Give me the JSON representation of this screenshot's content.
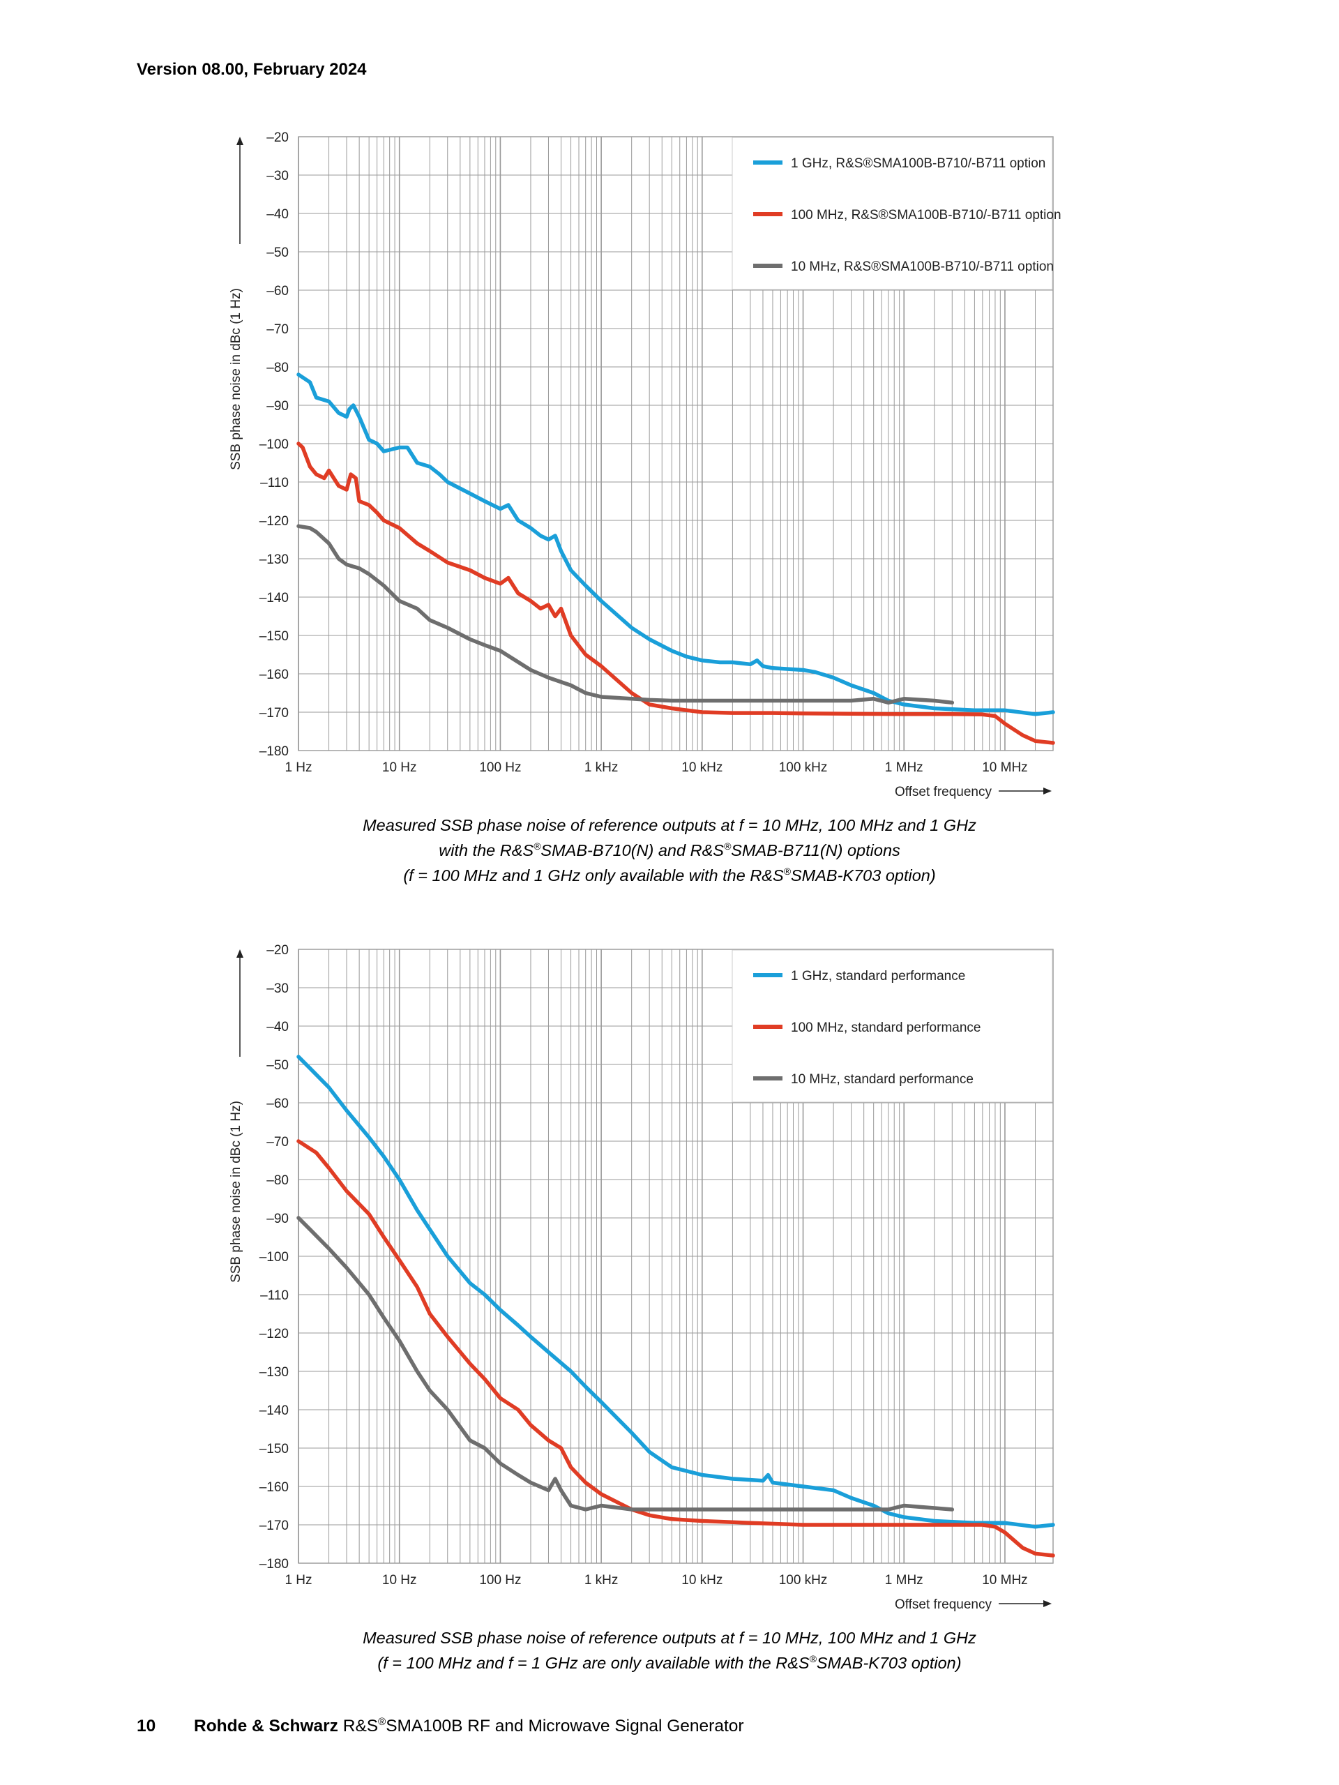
{
  "header": {
    "version": "Version 08.00, February 2024"
  },
  "footer": {
    "page_number": "10",
    "brand": "Rohde & Schwarz",
    "product_prefix": " R&S",
    "product_sup": "®",
    "product_rest": "SMA100B RF and Microwave Signal Generator"
  },
  "captions": [
    {
      "lines": [
        [
          "Measured SSB phase noise of reference outputs at f = 10 MHz, 100 MHz and 1 GHz"
        ],
        [
          "with the R&S",
          "®",
          "SMAB-B710(N) and R&S",
          "®",
          "SMAB-B711(N) options"
        ],
        [
          "(f = 100 MHz and 1 GHz only available with the R&S",
          "®",
          "SMAB-K703 option)"
        ]
      ]
    },
    {
      "lines": [
        [
          "Measured SSB phase noise of reference outputs at f = 10 MHz, 100 MHz and 1 GHz"
        ],
        [
          "(f = 100 MHz and f = 1 GHz are only available with the R&S",
          "®",
          "SMAB-K703 option)"
        ]
      ]
    }
  ],
  "chart_data": [
    {
      "type": "line",
      "xscale": "log",
      "xlim": [
        1,
        30000000
      ],
      "ylim": [
        -180,
        -20
      ],
      "ylabel": "SSB phase noise in dBc (1 Hz)",
      "xlabel": "Offset frequency",
      "xticks": [
        1,
        10,
        100,
        1000,
        10000,
        100000,
        1000000,
        10000000
      ],
      "xticklabels": [
        "1 Hz",
        "10 Hz",
        "100 Hz",
        "1 kHz",
        "10 kHz",
        "100 kHz",
        "1 MHz",
        "10 MHz"
      ],
      "yticks": [
        -20,
        -30,
        -40,
        -50,
        -60,
        -70,
        -80,
        -90,
        -100,
        -110,
        -120,
        -130,
        -140,
        -150,
        -160,
        -170,
        -180
      ],
      "yticklabels": [
        "–20",
        "–30",
        "–40",
        "–50",
        "–60",
        "–70",
        "–80",
        "–90",
        "–100",
        "–110",
        "–120",
        "–130",
        "–140",
        "–150",
        "–160",
        "–170",
        "–180"
      ],
      "grid": true,
      "legend_position": "top-right",
      "series": [
        {
          "name": "1 GHz, R&S®SMA100B-B710/-B711 option",
          "color": "#1a9fd9",
          "x": [
            1,
            1.3,
            1.5,
            2,
            2.5,
            3,
            3.2,
            3.5,
            4,
            5,
            6,
            7,
            10,
            12,
            15,
            20,
            25,
            30,
            50,
            70,
            100,
            120,
            150,
            200,
            250,
            300,
            350,
            400,
            500,
            700,
            1000,
            2000,
            3000,
            5000,
            7000,
            10000,
            15000,
            20000,
            30000,
            35000,
            40000,
            50000,
            100000,
            130000,
            200000,
            300000,
            500000,
            700000,
            1000000,
            2000000,
            5000000,
            10000000,
            20000000,
            30000000
          ],
          "y": [
            -82,
            -84,
            -88,
            -89,
            -92,
            -93,
            -91,
            -90,
            -93,
            -99,
            -100,
            -102,
            -101,
            -101,
            -105,
            -106,
            -108,
            -110,
            -113,
            -115,
            -117,
            -116,
            -120,
            -122,
            -124,
            -125,
            -124,
            -128,
            -133,
            -137,
            -141,
            -148,
            -151,
            -154,
            -155.5,
            -156.5,
            -157,
            -157,
            -157.5,
            -156.5,
            -158,
            -158.5,
            -159,
            -159.5,
            -161,
            -163,
            -165,
            -167,
            -168,
            -169,
            -169.5,
            -169.5,
            -170.5,
            -170
          ]
        },
        {
          "name": "100 MHz, R&S®SMA100B-B710/-B711 option",
          "color": "#e03c24",
          "x": [
            1,
            1.1,
            1.3,
            1.5,
            1.8,
            2,
            2.5,
            3,
            3.3,
            3.7,
            4,
            5,
            6,
            7,
            10,
            15,
            20,
            30,
            50,
            70,
            100,
            120,
            150,
            200,
            250,
            300,
            350,
            400,
            500,
            700,
            1000,
            2000,
            3000,
            5000,
            10000,
            20000,
            50000,
            100000,
            300000,
            1000000,
            3000000,
            6000000,
            8000000,
            10000000,
            15000000,
            20000000,
            30000000
          ],
          "y": [
            -100,
            -101,
            -106,
            -108,
            -109,
            -107,
            -111,
            -112,
            -108,
            -109,
            -115,
            -116,
            -118,
            -120,
            -122,
            -126,
            -128,
            -131,
            -133,
            -135,
            -136.5,
            -135,
            -139,
            -141,
            -143,
            -142,
            -145,
            -143,
            -150,
            -155,
            -158,
            -165,
            -168,
            -169,
            -170,
            -170.2,
            -170.2,
            -170.3,
            -170.4,
            -170.5,
            -170.5,
            -170.6,
            -171,
            -173,
            -176,
            -177.5,
            -178
          ]
        },
        {
          "name": "10 MHz, R&S®SMA100B-B710/-B711 option",
          "color": "#6e6e6e",
          "x": [
            1,
            1.3,
            1.5,
            2,
            2.5,
            3,
            4,
            5,
            7,
            10,
            15,
            20,
            30,
            50,
            70,
            100,
            200,
            300,
            500,
            700,
            1000,
            2000,
            3000,
            5000,
            10000,
            30000,
            100000,
            300000,
            500000,
            700000,
            1000000,
            2000000,
            3000000
          ],
          "y": [
            -121.5,
            -122,
            -123,
            -126,
            -130,
            -131.5,
            -132.5,
            -134,
            -137,
            -141,
            -143,
            -146,
            -148,
            -151,
            -152.5,
            -154,
            -159,
            -161,
            -163,
            -165,
            -166,
            -166.5,
            -166.8,
            -167,
            -167,
            -167,
            -167,
            -167,
            -166.5,
            -167.5,
            -166.5,
            -167,
            -167.5
          ]
        }
      ]
    },
    {
      "type": "line",
      "xscale": "log",
      "xlim": [
        1,
        30000000
      ],
      "ylim": [
        -180,
        -20
      ],
      "ylabel": "SSB phase noise in dBc (1 Hz)",
      "xlabel": "Offset frequency",
      "xticks": [
        1,
        10,
        100,
        1000,
        10000,
        100000,
        1000000,
        10000000
      ],
      "xticklabels": [
        "1 Hz",
        "10 Hz",
        "100 Hz",
        "1 kHz",
        "10 kHz",
        "100 kHz",
        "1 MHz",
        "10 MHz"
      ],
      "yticks": [
        -20,
        -30,
        -40,
        -50,
        -60,
        -70,
        -80,
        -90,
        -100,
        -110,
        -120,
        -130,
        -140,
        -150,
        -160,
        -170,
        -180
      ],
      "yticklabels": [
        "–20",
        "–30",
        "–40",
        "–50",
        "–60",
        "–70",
        "–80",
        "–90",
        "–100",
        "–110",
        "–120",
        "–130",
        "–140",
        "–150",
        "–160",
        "–170",
        "–180"
      ],
      "grid": true,
      "legend_position": "top-right",
      "series": [
        {
          "name": "1 GHz, standard performance",
          "color": "#1a9fd9",
          "x": [
            1,
            1.3,
            2,
            3,
            5,
            7,
            10,
            15,
            20,
            30,
            50,
            70,
            100,
            150,
            200,
            300,
            500,
            700,
            1000,
            2000,
            3000,
            5000,
            10000,
            20000,
            40000,
            45000,
            50000,
            100000,
            200000,
            300000,
            500000,
            700000,
            1000000,
            2000000,
            5000000,
            10000000,
            20000000,
            30000000
          ],
          "y": [
            -48,
            -51,
            -56,
            -62,
            -69,
            -74,
            -80,
            -88,
            -93,
            -100,
            -107,
            -110,
            -114,
            -118,
            -121,
            -125,
            -130,
            -134,
            -138,
            -146,
            -151,
            -155,
            -157,
            -158,
            -158.5,
            -157,
            -159,
            -160,
            -161,
            -163,
            -165,
            -167,
            -168,
            -169,
            -169.5,
            -169.5,
            -170.5,
            -170
          ]
        },
        {
          "name": "100 MHz, standard performance",
          "color": "#e03c24",
          "x": [
            1,
            1.5,
            2,
            3,
            5,
            7,
            10,
            15,
            20,
            30,
            50,
            70,
            100,
            150,
            200,
            300,
            400,
            500,
            700,
            1000,
            2000,
            3000,
            5000,
            10000,
            30000,
            100000,
            300000,
            1000000,
            3000000,
            6000000,
            8000000,
            10000000,
            15000000,
            20000000,
            30000000
          ],
          "y": [
            -70,
            -73,
            -77,
            -83,
            -89,
            -95,
            -101,
            -108,
            -115,
            -121,
            -128,
            -132,
            -137,
            -140,
            -144,
            -148,
            -150,
            -155,
            -159,
            -162,
            -166,
            -167.5,
            -168.5,
            -169,
            -169.5,
            -170,
            -170,
            -170,
            -170,
            -170,
            -170.5,
            -172,
            -176,
            -177.5,
            -178
          ]
        },
        {
          "name": "10 MHz, standard performance",
          "color": "#6e6e6e",
          "x": [
            1,
            1.3,
            2,
            3,
            5,
            7,
            10,
            15,
            20,
            30,
            50,
            70,
            100,
            150,
            200,
            300,
            350,
            400,
            500,
            700,
            1000,
            2000,
            5000,
            10000,
            100000,
            300000,
            700000,
            1000000,
            3000000
          ],
          "y": [
            -90,
            -93,
            -98,
            -103,
            -110,
            -116,
            -122,
            -130,
            -135,
            -140,
            -148,
            -150,
            -154,
            -157,
            -159,
            -161,
            -158,
            -161,
            -165,
            -166,
            -165,
            -166,
            -166,
            -166,
            -166,
            -166,
            -166,
            -165,
            -166
          ]
        }
      ]
    }
  ]
}
